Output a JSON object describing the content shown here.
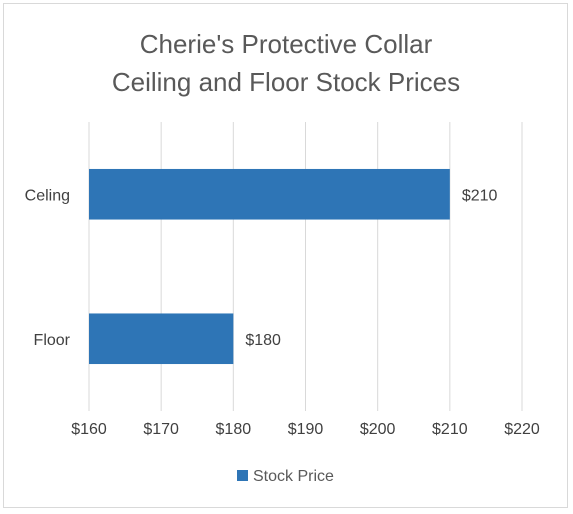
{
  "chart_data": {
    "type": "bar",
    "orientation": "horizontal",
    "title_lines": [
      "Cherie's Protective Collar",
      "Ceiling and Floor Stock Prices"
    ],
    "categories": [
      "Celing",
      "Floor"
    ],
    "series": [
      {
        "name": "Stock Price",
        "values": [
          210,
          180
        ],
        "labels": [
          "$210",
          "$180"
        ]
      }
    ],
    "xlim": [
      160,
      220
    ],
    "x_ticks": [
      160,
      170,
      180,
      190,
      200,
      210,
      220
    ],
    "x_tick_labels": [
      "$160",
      "$170",
      "$180",
      "$190",
      "$200",
      "$210",
      "$220"
    ],
    "grid": "vertical",
    "legend_position": "bottom",
    "colors": {
      "bar": "#2e75b6",
      "grid": "#d9d9d9",
      "text": "#595959",
      "title": "#595959",
      "label": "#404040"
    }
  }
}
